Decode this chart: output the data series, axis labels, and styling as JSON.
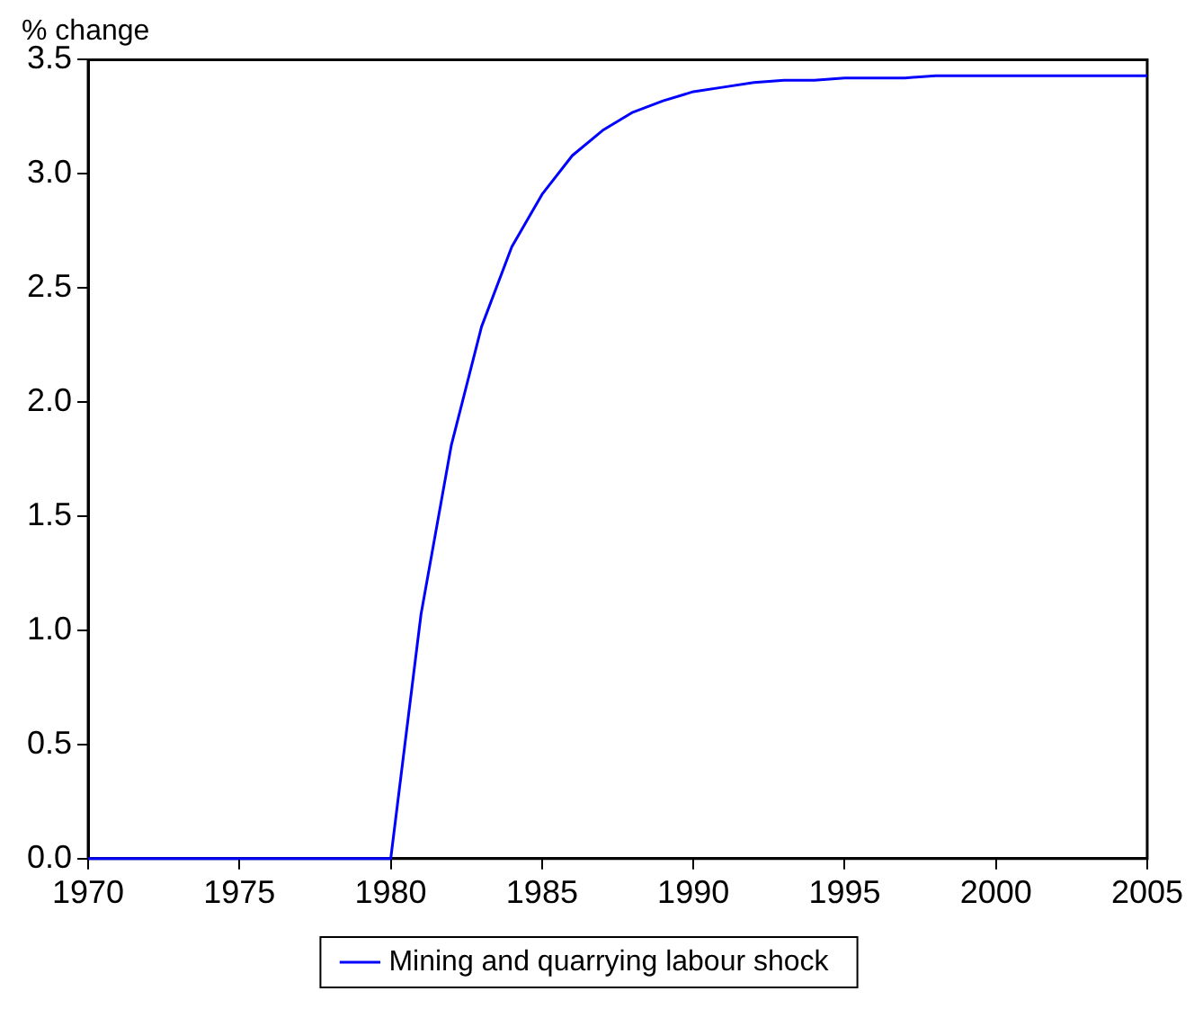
{
  "chart_data": {
    "type": "line",
    "ylabel": "% change",
    "x": [
      1970,
      1971,
      1972,
      1973,
      1974,
      1975,
      1976,
      1977,
      1978,
      1979,
      1980,
      1981,
      1982,
      1983,
      1984,
      1985,
      1986,
      1987,
      1988,
      1989,
      1990,
      1991,
      1992,
      1993,
      1994,
      1995,
      1996,
      1997,
      1998,
      1999,
      2000,
      2001,
      2002,
      2003,
      2004,
      2005
    ],
    "series": [
      {
        "name": "Mining and quarrying labour shock",
        "color": "#0000ff",
        "values": [
          0,
          0,
          0,
          0,
          0,
          0,
          0,
          0,
          0,
          0,
          0,
          1.07,
          1.81,
          2.33,
          2.68,
          2.91,
          3.08,
          3.19,
          3.27,
          3.32,
          3.36,
          3.38,
          3.4,
          3.41,
          3.41,
          3.42,
          3.42,
          3.42,
          3.43,
          3.43,
          3.43,
          3.43,
          3.43,
          3.43,
          3.43,
          3.43
        ]
      }
    ],
    "xlim": [
      1970,
      2005
    ],
    "xticks": [
      1970,
      1975,
      1980,
      1985,
      1990,
      1995,
      2000,
      2005
    ],
    "ylim": [
      0,
      3.5
    ],
    "yticks": [
      {
        "value": 0,
        "label": "0.0"
      },
      {
        "value": 0.5,
        "label": "0.5"
      },
      {
        "value": 1,
        "label": "1.0"
      },
      {
        "value": 1.5,
        "label": "1.5"
      },
      {
        "value": 2,
        "label": "2.0"
      },
      {
        "value": 2.5,
        "label": "2.5"
      },
      {
        "value": 3,
        "label": "3.0"
      },
      {
        "value": 3.5,
        "label": "3.5"
      }
    ],
    "grid": false,
    "legend": "bottom",
    "marker": "none",
    "line_style": "solid"
  }
}
